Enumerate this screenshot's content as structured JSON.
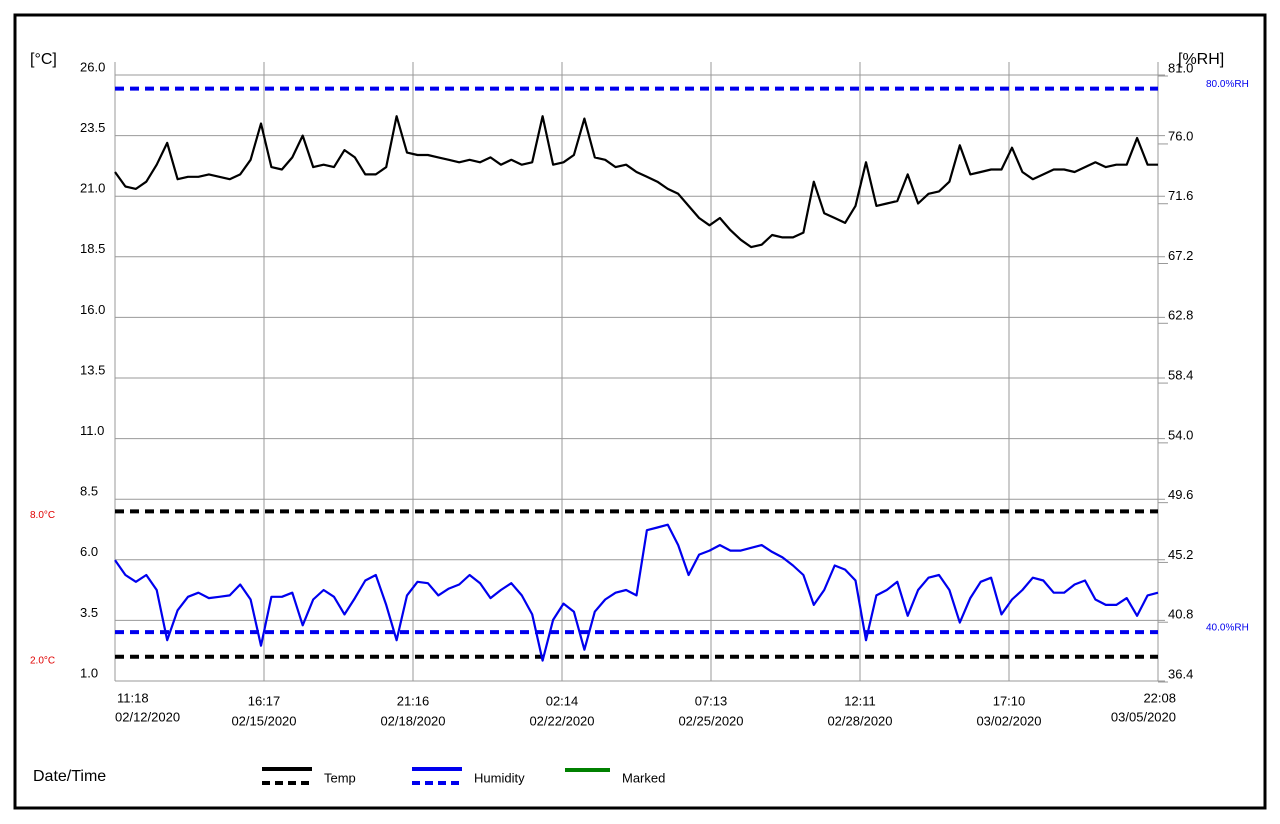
{
  "chart_data": {
    "type": "line",
    "y_axis_label": "[°C]",
    "y2_axis_label": "[%RH]",
    "x_axis_label": "Date/Time",
    "ylim": [
      1,
      26
    ],
    "yticks": [
      {
        "value": 26,
        "label": "26.0"
      },
      23.5,
      {
        "value": 21,
        "label": "21.0"
      },
      18.5,
      {
        "value": 16,
        "label": "16.0"
      },
      13.5,
      {
        "value": 11,
        "label": "11.0"
      },
      8.5,
      {
        "value": 6,
        "label": "6.0"
      },
      3.5,
      {
        "value": 1,
        "label": "1.0"
      }
    ],
    "y2lim": [
      36.4,
      81
    ],
    "y2ticks": [
      {
        "value": 81,
        "label": "81.0"
      },
      {
        "value": 76,
        "label": "76.0"
      },
      71.6,
      67.2,
      62.8,
      58.4,
      {
        "value": 54,
        "label": "54.0"
      },
      49.6,
      45.2,
      40.8,
      36.4
    ],
    "x_labels": [
      {
        "time": "11:18",
        "date": "02/12/2020"
      },
      {
        "time": "16:17",
        "date": "02/15/2020"
      },
      {
        "time": "21:16",
        "date": "02/18/2020"
      },
      {
        "time": "02:14",
        "date": "02/22/2020"
      },
      {
        "time": "07:13",
        "date": "02/25/2020"
      },
      {
        "time": "12:11",
        "date": "02/28/2020"
      },
      {
        "time": "17:10",
        "date": "03/02/2020"
      },
      {
        "time": "22:08",
        "date": "03/05/2020"
      }
    ],
    "grid": true,
    "series": [
      {
        "name": "Temp",
        "color": "#000000",
        "axis": "y",
        "values": [
          22.0,
          21.4,
          21.3,
          21.6,
          22.3,
          23.2,
          21.7,
          21.8,
          21.8,
          21.9,
          21.8,
          21.7,
          21.9,
          22.5,
          24.0,
          22.2,
          22.1,
          22.6,
          23.5,
          22.2,
          22.3,
          22.2,
          22.9,
          22.6,
          21.9,
          21.9,
          22.2,
          24.3,
          22.8,
          22.7,
          22.7,
          22.6,
          22.5,
          22.4,
          22.5,
          22.4,
          22.6,
          22.3,
          22.5,
          22.3,
          22.4,
          24.3,
          22.3,
          22.4,
          22.7,
          24.2,
          22.6,
          22.5,
          22.2,
          22.3,
          22.0,
          21.8,
          21.6,
          21.3,
          21.1,
          20.6,
          20.1,
          19.8,
          20.1,
          19.6,
          19.2,
          18.9,
          19.0,
          19.4,
          19.3,
          19.3,
          19.5,
          21.6,
          20.3,
          20.1,
          19.9,
          20.6,
          22.4,
          20.6,
          20.7,
          20.8,
          21.9,
          20.7,
          21.1,
          21.2,
          21.6,
          23.1,
          21.9,
          22.0,
          22.1,
          22.1,
          23.0,
          22.0,
          21.7,
          21.9,
          22.1,
          22.1,
          22.0,
          22.2,
          22.4,
          22.2,
          22.3,
          22.3,
          23.4,
          22.3,
          22.3
        ]
      },
      {
        "name": "Humidity",
        "color": "#0000ee",
        "axis": "y2",
        "values": [
          45.3,
          44.2,
          43.7,
          44.2,
          43.1,
          39.4,
          41.6,
          42.6,
          42.9,
          42.5,
          42.6,
          42.7,
          43.5,
          42.4,
          39.0,
          42.6,
          42.6,
          42.9,
          40.5,
          42.4,
          43.1,
          42.6,
          41.3,
          42.5,
          43.8,
          44.2,
          42.0,
          39.4,
          42.7,
          43.7,
          43.6,
          42.7,
          43.2,
          43.5,
          44.2,
          43.6,
          42.5,
          43.1,
          43.6,
          42.7,
          41.3,
          37.9,
          40.9,
          42.1,
          41.5,
          38.7,
          41.5,
          42.4,
          42.9,
          43.1,
          42.7,
          47.5,
          47.7,
          47.9,
          46.4,
          44.2,
          45.7,
          46.0,
          46.4,
          46.0,
          46.0,
          46.2,
          46.4,
          45.9,
          45.5,
          44.9,
          44.2,
          42.0,
          43.1,
          44.9,
          44.6,
          43.8,
          39.4,
          42.7,
          43.1,
          43.7,
          41.2,
          43.1,
          44.0,
          44.2,
          43.1,
          40.7,
          42.5,
          43.7,
          44.0,
          41.3,
          42.4,
          43.1,
          44.0,
          43.8,
          42.9,
          42.9,
          43.5,
          43.8,
          42.4,
          42.0,
          42.0,
          42.5,
          41.2,
          42.7,
          42.9
        ]
      }
    ],
    "legend_extra": [
      {
        "name": "Marked",
        "color": "#008000"
      }
    ],
    "thresholds": [
      {
        "value": 8,
        "label": "8.0°C",
        "axis": "y",
        "color": "#000000",
        "label_color": "#e00000"
      },
      {
        "value": 2,
        "label": "2.0°C",
        "axis": "y",
        "color": "#000000",
        "label_color": "#e00000"
      },
      {
        "value": 80,
        "label": "80.0%RH",
        "axis": "y2",
        "color": "#0000ee",
        "label_color": "#0000ee"
      },
      {
        "value": 40,
        "label": "40.0%RH",
        "axis": "y2",
        "color": "#0000ee",
        "label_color": "#0000ee"
      }
    ]
  }
}
